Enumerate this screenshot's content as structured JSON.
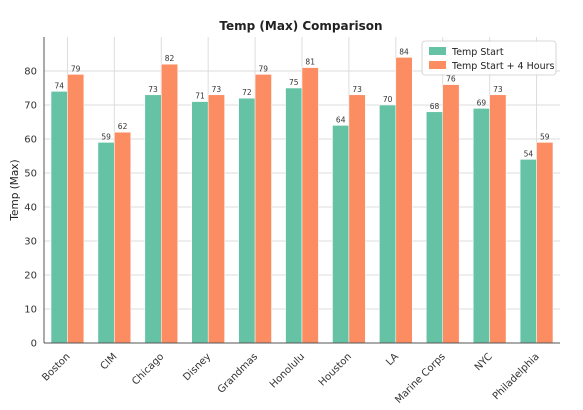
{
  "chart_data": {
    "type": "bar",
    "title": "Temp (Max) Comparison",
    "xlabel": "",
    "ylabel": "Temp (Max)",
    "ylim": [
      0,
      90
    ],
    "yticks": [
      0,
      10,
      20,
      30,
      40,
      50,
      60,
      70,
      80
    ],
    "grid": true,
    "legend_position": "top-right",
    "categories": [
      "Boston",
      "CIM",
      "Chicago",
      "Disney",
      "Grandmas",
      "Honolulu",
      "Houston",
      "LA",
      "Marine Corps",
      "NYC",
      "Philadelphia"
    ],
    "series": [
      {
        "name": "Temp Start",
        "color": "#66c2a5",
        "values": [
          74,
          59,
          73,
          71,
          72,
          75,
          64,
          70,
          68,
          69,
          54
        ]
      },
      {
        "name": "Temp Start + 4 Hours",
        "color": "#fc8d62",
        "values": [
          79,
          62,
          82,
          73,
          79,
          81,
          73,
          84,
          76,
          73,
          59
        ]
      }
    ]
  }
}
